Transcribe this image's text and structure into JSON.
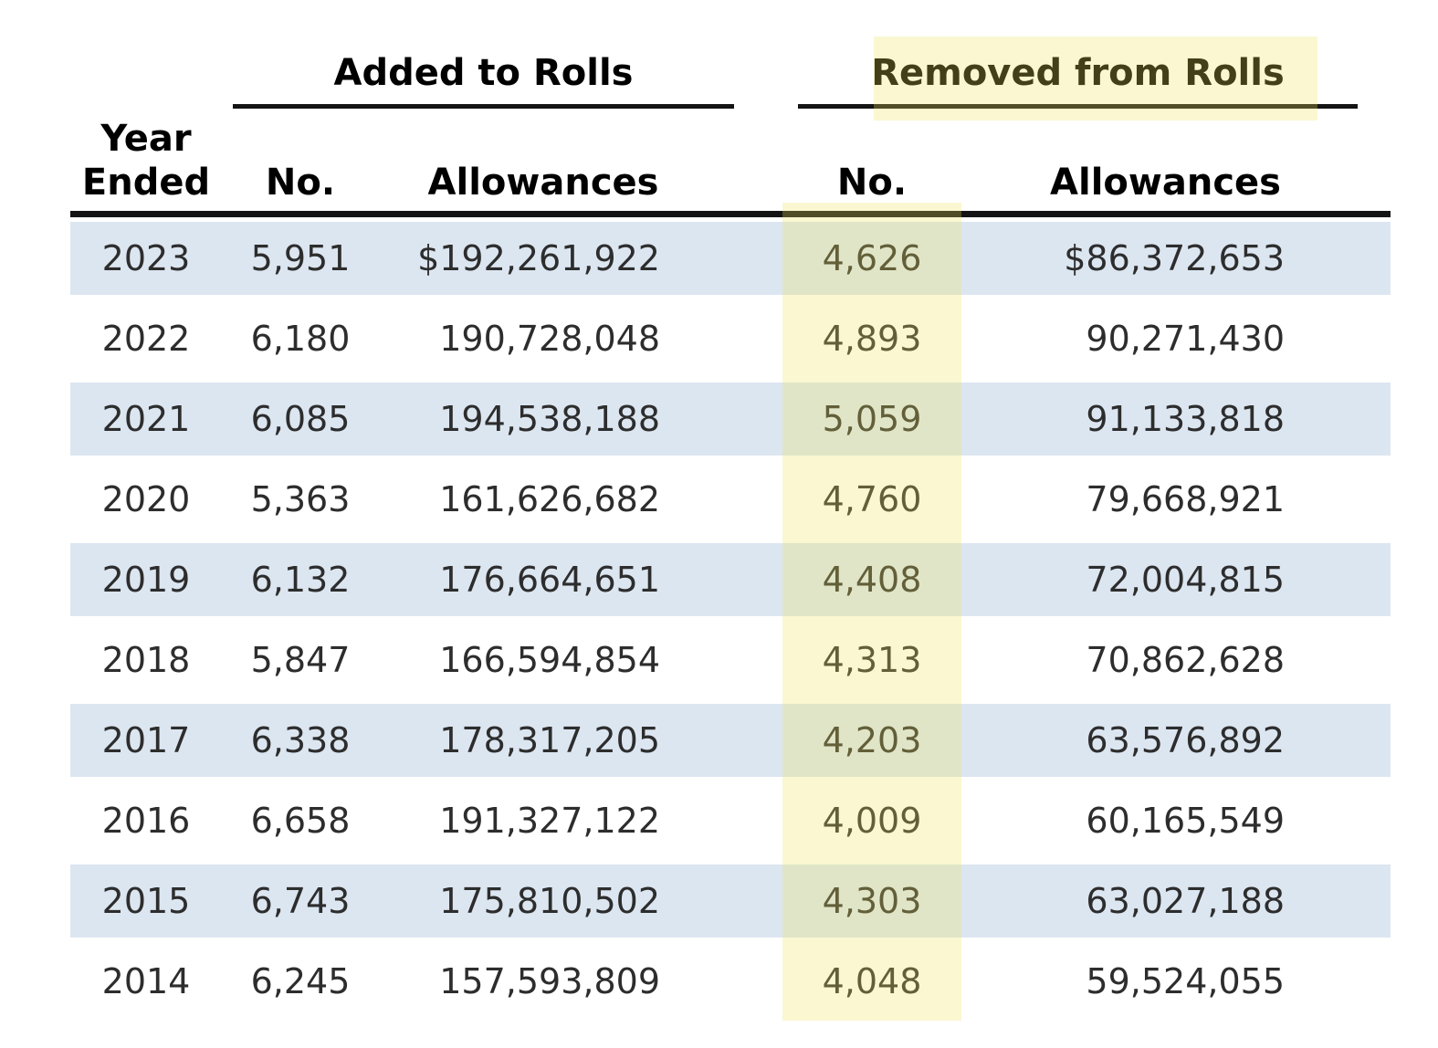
{
  "table": {
    "group_headers": {
      "added": "Added to Rolls",
      "removed": "Removed from Rolls"
    },
    "column_headers": {
      "year_line1": "Year",
      "year_line2": "Ended",
      "no": "No.",
      "allowances": "Allowances"
    },
    "rows": [
      {
        "year": "2023",
        "added_no": "5,951",
        "added_allowances": "$192,261,922",
        "removed_no": "4,626",
        "removed_allowances": "$86,372,653"
      },
      {
        "year": "2022",
        "added_no": "6,180",
        "added_allowances": "190,728,048",
        "removed_no": "4,893",
        "removed_allowances": "90,271,430"
      },
      {
        "year": "2021",
        "added_no": "6,085",
        "added_allowances": "194,538,188",
        "removed_no": "5,059",
        "removed_allowances": "91,133,818"
      },
      {
        "year": "2020",
        "added_no": "5,363",
        "added_allowances": "161,626,682",
        "removed_no": "4,760",
        "removed_allowances": "79,668,921"
      },
      {
        "year": "2019",
        "added_no": "6,132",
        "added_allowances": "176,664,651",
        "removed_no": "4,408",
        "removed_allowances": "72,004,815"
      },
      {
        "year": "2018",
        "added_no": "5,847",
        "added_allowances": "166,594,854",
        "removed_no": "4,313",
        "removed_allowances": "70,862,628"
      },
      {
        "year": "2017",
        "added_no": "6,338",
        "added_allowances": "178,317,205",
        "removed_no": "4,203",
        "removed_allowances": "63,576,892"
      },
      {
        "year": "2016",
        "added_no": "6,658",
        "added_allowances": "191,327,122",
        "removed_no": "4,009",
        "removed_allowances": "60,165,549"
      },
      {
        "year": "2015",
        "added_no": "6,743",
        "added_allowances": "175,810,502",
        "removed_no": "4,303",
        "removed_allowances": "63,027,188"
      },
      {
        "year": "2014",
        "added_no": "6,245",
        "added_allowances": "157,593,809",
        "removed_no": "4,048",
        "removed_allowances": "59,524,055"
      }
    ],
    "colors": {
      "stripe_blue": "#dce6f1",
      "highlight_yellow": "rgba(238,226,90,0.28)",
      "rule_black": "#141414",
      "text": "#2d2d2d"
    }
  }
}
